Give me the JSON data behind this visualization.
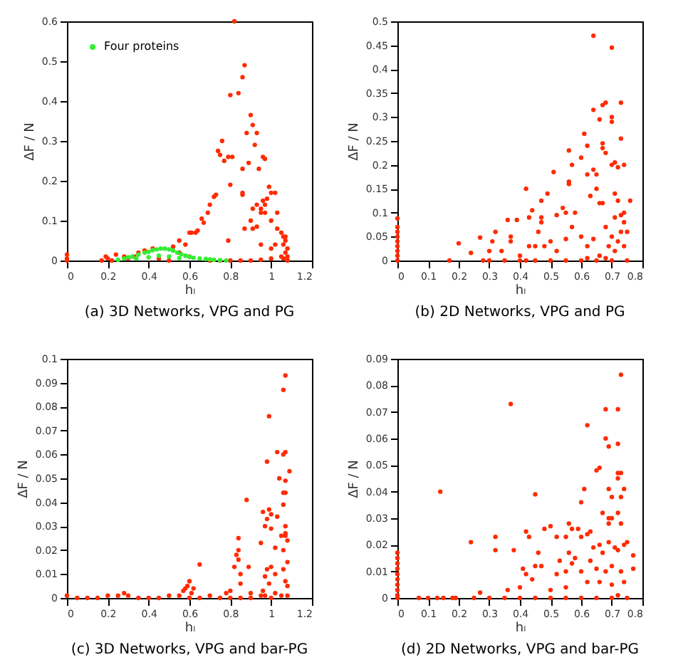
{
  "chart_data": [
    {
      "type": "scatter",
      "title": "(a) 3D Networks, VPG and PG",
      "xlabel": "hₗ",
      "ylabel": "ΔF / N",
      "xlim": [
        0,
        1.2
      ],
      "xticks": [
        0,
        0.2,
        0.4,
        0.6,
        0.8,
        1,
        1.2
      ],
      "ylim": [
        0,
        0.6
      ],
      "yticks": [
        0,
        0.1,
        0.2,
        0.3,
        0.4,
        0.5,
        0.6
      ],
      "marker": "circle",
      "legend": "top left",
      "series": [
        {
          "color": "#ff2a00",
          "x": [
            0.82,
            0.87,
            0.86,
            0.84,
            0.8,
            0.9,
            0.91,
            0.93,
            0.88,
            0.76,
            0.74,
            0.75,
            0.79,
            0.81,
            0.77,
            0.89,
            0.86,
            0.94,
            0.96,
            0.97,
            0.92,
            0.8,
            0.86,
            0.86,
            0.72,
            0.73,
            0.7,
            0.69,
            0.99,
            1.0,
            1.02,
            0.98,
            0.96,
            0.97,
            0.95,
            0.91,
            0.93,
            0.9,
            0.95,
            0.97,
            1.03,
            1.0,
            0.93,
            0.87,
            0.91,
            0.66,
            0.67,
            0.64,
            0.6,
            0.61,
            0.55,
            0.58,
            0.63,
            0.79,
            0.95,
            1.03,
            1.05,
            1.06,
            1.07,
            1.07,
            1.06,
            1.08,
            1.07,
            1.08,
            1.06,
            1.05,
            1.0,
            1.02,
            0,
            0,
            0,
            0.17,
            0.19,
            0.2,
            0.22,
            0.24,
            0.28,
            0.3,
            0.33,
            0.35,
            0.38,
            0.42,
            0.52,
            0.55,
            0.6,
            0.8,
            0.85,
            0.9,
            0.95,
            1.0,
            0.75,
            0.7,
            1.08,
            0.5,
            0.45
          ],
          "values": [
            0.6,
            0.49,
            0.46,
            0.42,
            0.415,
            0.365,
            0.34,
            0.32,
            0.32,
            0.3,
            0.275,
            0.265,
            0.26,
            0.26,
            0.25,
            0.245,
            0.23,
            0.23,
            0.26,
            0.255,
            0.29,
            0.19,
            0.17,
            0.165,
            0.16,
            0.165,
            0.14,
            0.12,
            0.185,
            0.17,
            0.17,
            0.155,
            0.15,
            0.14,
            0.13,
            0.13,
            0.14,
            0.1,
            0.12,
            0.12,
            0.12,
            0.1,
            0.085,
            0.08,
            0.08,
            0.105,
            0.095,
            0.075,
            0.07,
            0.07,
            0.05,
            0.04,
            0.07,
            0.05,
            0.04,
            0.08,
            0.07,
            0.06,
            0.06,
            0.05,
            0.04,
            0.03,
            0.02,
            0.01,
            0.005,
            0.01,
            0.03,
            0.04,
            0.015,
            0.005,
            0,
            0,
            0.01,
            0.005,
            0,
            0.015,
            0.01,
            0.005,
            0.01,
            0.02,
            0.025,
            0.03,
            0.035,
            0.02,
            0.01,
            0,
            0,
            0,
            0.002,
            0.005,
            0,
            0,
            0,
            0,
            0.005
          ]
        },
        {
          "name": "Four proteins",
          "color": "#33ee33",
          "x": [
            0.25,
            0.28,
            0.3,
            0.32,
            0.35,
            0.38,
            0.4,
            0.42,
            0.44,
            0.46,
            0.48,
            0.5,
            0.52,
            0.54,
            0.56,
            0.58,
            0.6,
            0.62,
            0.65,
            0.68,
            0.7,
            0.72,
            0.75,
            0.78,
            0.34,
            0.4,
            0.45,
            0.5,
            0.55
          ],
          "values": [
            0.002,
            0.005,
            0.008,
            0.01,
            0.015,
            0.02,
            0.022,
            0.026,
            0.028,
            0.03,
            0.03,
            0.028,
            0.025,
            0.02,
            0.016,
            0.012,
            0.009,
            0.007,
            0.005,
            0.004,
            0.003,
            0.002,
            0.001,
            0,
            0.005,
            0.008,
            0.012,
            0.01,
            0.006
          ]
        }
      ]
    },
    {
      "type": "scatter",
      "title": "(b) 2D Networks, VPG and PG",
      "xlabel": "hₗ",
      "ylabel": "ΔF / N",
      "xlim": [
        0,
        0.8
      ],
      "xticks": [
        0,
        0.1,
        0.2,
        0.3,
        0.4,
        0.5,
        0.6,
        0.7,
        0.8
      ],
      "ylim": [
        0,
        0.5
      ],
      "yticks": [
        0,
        0.05,
        0.1,
        0.15,
        0.2,
        0.25,
        0.3,
        0.35,
        0.4,
        0.45,
        0.5
      ],
      "marker": "circle",
      "series": [
        {
          "color": "#ff2a00",
          "x": [
            0.64,
            0.7,
            0.68,
            0.67,
            0.73,
            0.64,
            0.66,
            0.7,
            0.61,
            0.7,
            0.73,
            0.62,
            0.67,
            0.67,
            0.68,
            0.56,
            0.6,
            0.57,
            0.71,
            0.7,
            0.72,
            0.74,
            0.64,
            0.65,
            0.62,
            0.56,
            0.56,
            0.51,
            0.42,
            0.65,
            0.71,
            0.72,
            0.76,
            0.67,
            0.63,
            0.44,
            0.47,
            0.49,
            0.54,
            0.55,
            0.43,
            0.47,
            0.47,
            0.36,
            0.39,
            0.52,
            0.58,
            0.74,
            0.73,
            0.74,
            0.71,
            0.73,
            0.75,
            0.7,
            0.72,
            0.69,
            0.71,
            0.74,
            0.68,
            0.66,
            0.6,
            0.57,
            0.46,
            0.5,
            0.48,
            0.45,
            0.43,
            0.37,
            0.37,
            0.32,
            0.27,
            0.31,
            0.3,
            0.34,
            0.2,
            0.24,
            0.17,
            0.28,
            0.3,
            0.35,
            0.4,
            0.42,
            0.45,
            0.5,
            0.55,
            0.6,
            0.65,
            0.7,
            0.75,
            0.4,
            0.52,
            0.55,
            0.62,
            0.64,
            0.66,
            0.62,
            0.68,
            0,
            0,
            0,
            0,
            0,
            0,
            0,
            0,
            0
          ],
          "values": [
            0.47,
            0.445,
            0.33,
            0.325,
            0.33,
            0.315,
            0.295,
            0.3,
            0.265,
            0.29,
            0.255,
            0.24,
            0.245,
            0.235,
            0.225,
            0.23,
            0.215,
            0.2,
            0.205,
            0.2,
            0.195,
            0.2,
            0.19,
            0.18,
            0.18,
            0.165,
            0.16,
            0.185,
            0.15,
            0.15,
            0.14,
            0.125,
            0.125,
            0.12,
            0.135,
            0.105,
            0.125,
            0.14,
            0.11,
            0.1,
            0.09,
            0.08,
            0.09,
            0.085,
            0.085,
            0.095,
            0.1,
            0.1,
            0.095,
            0.08,
            0.09,
            0.06,
            0.06,
            0.05,
            0.04,
            0.03,
            0.02,
            0.03,
            0.07,
            0.12,
            0.05,
            0.07,
            0.06,
            0.04,
            0.03,
            0.03,
            0.03,
            0.05,
            0.04,
            0.06,
            0.048,
            0.04,
            0.02,
            0.02,
            0.036,
            0.016,
            0,
            0,
            0,
            0,
            0,
            0,
            0,
            0,
            0,
            0,
            0,
            0,
            0,
            0.01,
            0.02,
            0.045,
            0.03,
            0.045,
            0.01,
            0.005,
            0.005,
            0.088,
            0.07,
            0.06,
            0.05,
            0.04,
            0.03,
            0.02,
            0.01,
            0
          ]
        }
      ]
    },
    {
      "type": "scatter",
      "title": "(c) 3D Networks, VPG and bar-PG",
      "xlabel": "hₗ",
      "ylabel": "ΔF / N",
      "xlim": [
        0,
        1.2
      ],
      "xticks": [
        0,
        0.2,
        0.4,
        0.6,
        0.8,
        1,
        1.2
      ],
      "ylim": [
        0,
        0.1
      ],
      "yticks": [
        0,
        0.01,
        0.02,
        0.03,
        0.04,
        0.05,
        0.06,
        0.07,
        0.08,
        0.09,
        0.1
      ],
      "marker": "circle",
      "series": [
        {
          "color": "#ff2a00",
          "x": [
            1.07,
            1.06,
            0.99,
            1.03,
            1.07,
            1.06,
            0.98,
            1.09,
            1.04,
            1.07,
            1.06,
            1.07,
            0.88,
            1.06,
            0.99,
            0.96,
            0.98,
            0.97,
            1.03,
            1.0,
            1.07,
            0.95,
            1.0,
            1.05,
            1.07,
            1.07,
            0.84,
            1.08,
            0.84,
            0.83,
            1.02,
            1.06,
            1.08,
            0.84,
            0.82,
            0.89,
            0.65,
            1.0,
            0.98,
            1.02,
            1.06,
            0.97,
            0.85,
            0.6,
            0.59,
            0.58,
            0.57,
            0.62,
            0.61,
            0.99,
            1.07,
            1.08,
            0.96,
            0.8,
            0.78,
            0.85,
            0.9,
            0,
            0.05,
            0.1,
            0.15,
            0.2,
            0.25,
            0.28,
            0.3,
            0.35,
            0.4,
            0.45,
            0.5,
            0.55,
            0.6,
            0.65,
            0.7,
            0.75,
            0.8,
            0.85,
            0.9,
            0.95,
            1.0,
            1.05,
            1.08,
            1.02,
            0.97
          ],
          "values": [
            0.093,
            0.087,
            0.076,
            0.061,
            0.061,
            0.06,
            0.057,
            0.053,
            0.05,
            0.049,
            0.044,
            0.044,
            0.041,
            0.039,
            0.037,
            0.036,
            0.033,
            0.03,
            0.034,
            0.035,
            0.03,
            0.023,
            0.029,
            0.026,
            0.026,
            0.027,
            0.025,
            0.024,
            0.02,
            0.018,
            0.021,
            0.02,
            0.015,
            0.016,
            0.013,
            0.013,
            0.014,
            0.013,
            0.012,
            0.01,
            0.012,
            0.009,
            0.01,
            0.007,
            0.005,
            0.004,
            0.003,
            0.004,
            0.002,
            0.006,
            0.007,
            0.005,
            0.003,
            0.003,
            0.002,
            0.006,
            0.002,
            0.001,
            0,
            0,
            0,
            0.001,
            0.001,
            0.002,
            0.001,
            0,
            0,
            0,
            0.001,
            0.001,
            0,
            0,
            0.001,
            0,
            0,
            0,
            0,
            0.001,
            0,
            0.001,
            0.001,
            0.002,
            0.001
          ]
        }
      ]
    },
    {
      "type": "scatter",
      "title": "(d) 2D Networks, VPG and bar-PG",
      "xlabel": "hₗ",
      "ylabel": "ΔF / N",
      "xlim": [
        0,
        0.8
      ],
      "xticks": [
        0,
        0.1,
        0.2,
        0.3,
        0.4,
        0.5,
        0.6,
        0.7,
        0.8
      ],
      "ylim": [
        0,
        0.09
      ],
      "yticks": [
        0,
        0.01,
        0.02,
        0.03,
        0.04,
        0.05,
        0.06,
        0.07,
        0.08,
        0.09
      ],
      "marker": "circle",
      "series": [
        {
          "color": "#ff2a00",
          "x": [
            0.73,
            0.37,
            0.68,
            0.72,
            0.62,
            0.68,
            0.69,
            0.72,
            0.66,
            0.65,
            0.72,
            0.73,
            0.72,
            0.61,
            0.14,
            0.45,
            0.69,
            0.74,
            0.73,
            0.6,
            0.7,
            0.67,
            0.69,
            0.7,
            0.72,
            0.73,
            0.69,
            0.59,
            0.57,
            0.55,
            0.5,
            0.48,
            0.42,
            0.43,
            0.32,
            0.24,
            0.38,
            0.32,
            0.62,
            0.6,
            0.63,
            0.64,
            0.66,
            0.69,
            0.71,
            0.74,
            0.75,
            0.46,
            0.47,
            0.52,
            0.53,
            0.56,
            0.56,
            0.57,
            0.58,
            0.63,
            0.67,
            0.72,
            0.77,
            0.77,
            0.41,
            0.42,
            0.45,
            0.44,
            0.52,
            0.55,
            0.6,
            0.65,
            0.68,
            0.7,
            0.73,
            0.62,
            0.66,
            0.7,
            0.74,
            0.55,
            0.5,
            0.4,
            0.36,
            0.27,
            0.07,
            0.1,
            0.13,
            0.15,
            0.18,
            0.19,
            0.25,
            0.3,
            0.35,
            0.4,
            0.45,
            0.5,
            0.55,
            0.6,
            0.65,
            0.7,
            0.75,
            0.72,
            0,
            0,
            0,
            0,
            0,
            0,
            0,
            0,
            0,
            0
          ],
          "values": [
            0.084,
            0.073,
            0.071,
            0.071,
            0.065,
            0.06,
            0.057,
            0.058,
            0.049,
            0.048,
            0.047,
            0.047,
            0.045,
            0.041,
            0.04,
            0.039,
            0.041,
            0.041,
            0.038,
            0.036,
            0.038,
            0.032,
            0.03,
            0.03,
            0.032,
            0.028,
            0.028,
            0.026,
            0.026,
            0.023,
            0.027,
            0.026,
            0.025,
            0.023,
            0.023,
            0.021,
            0.018,
            0.018,
            0.024,
            0.023,
            0.025,
            0.019,
            0.02,
            0.021,
            0.019,
            0.02,
            0.021,
            0.017,
            0.012,
            0.023,
            0.014,
            0.028,
            0.017,
            0.013,
            0.015,
            0.014,
            0.017,
            0.018,
            0.016,
            0.011,
            0.011,
            0.009,
            0.012,
            0.007,
            0.009,
            0.01,
            0.01,
            0.011,
            0.01,
            0.012,
            0.01,
            0.006,
            0.006,
            0.005,
            0.006,
            0.004,
            0.003,
            0.004,
            0.003,
            0.002,
            0,
            0,
            0,
            0,
            0,
            0,
            0,
            0,
            0,
            0,
            0,
            0,
            0,
            0,
            0,
            0,
            0,
            0.001,
            0.017,
            0.015,
            0.013,
            0.011,
            0.009,
            0.007,
            0.005,
            0.003,
            0.001,
            0
          ]
        }
      ]
    }
  ]
}
